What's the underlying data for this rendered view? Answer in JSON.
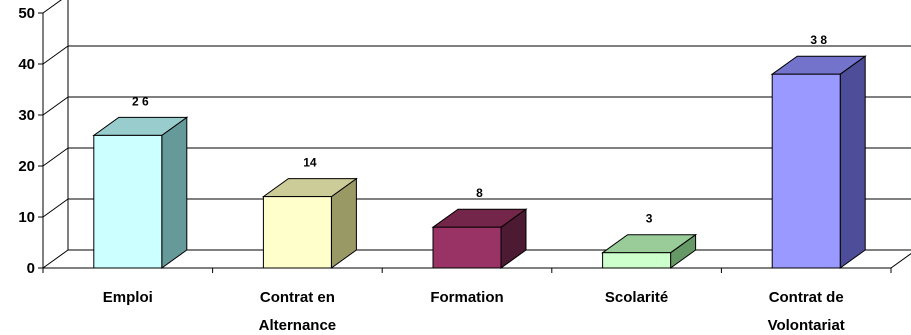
{
  "chart_data": {
    "type": "bar",
    "categories": [
      [
        "Emploi"
      ],
      [
        "Contrat en",
        "Alternance"
      ],
      [
        "Formation"
      ],
      [
        "Scolarité"
      ],
      [
        "Contrat de",
        "Volontariat"
      ]
    ],
    "values": [
      26,
      14,
      8,
      3,
      38
    ],
    "data_labels": [
      "2 6",
      "14",
      "8",
      "3",
      "3 8"
    ],
    "ylim": [
      0,
      50
    ],
    "yticks": [
      0,
      10,
      20,
      30,
      40,
      50
    ],
    "grid": true,
    "legend": "none",
    "style": "3d-column",
    "colors": [
      {
        "front": "#ccffff",
        "side": "#669999",
        "top": "#99cccc"
      },
      {
        "front": "#ffffcc",
        "side": "#999966",
        "top": "#cccc99"
      },
      {
        "front": "#993366",
        "side": "#4d1a33",
        "top": "#732649"
      },
      {
        "front": "#ccffcc",
        "side": "#669966",
        "top": "#99cc99"
      },
      {
        "front": "#9999ff",
        "side": "#4d4d99",
        "top": "#7373cc"
      }
    ]
  }
}
